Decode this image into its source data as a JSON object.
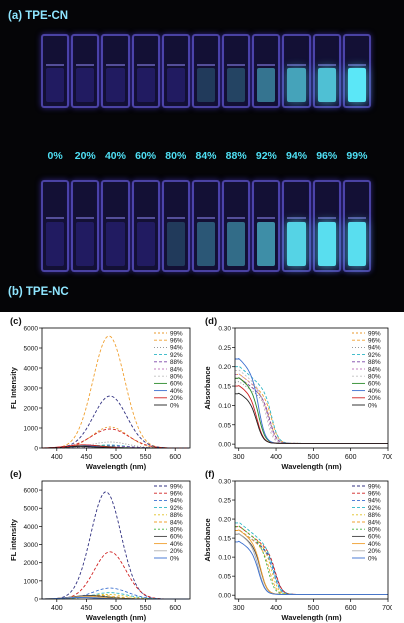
{
  "photos": {
    "label_top": "(a)  TPE-CN",
    "label_bottom": "(b)  TPE-NC",
    "percentages": [
      "0%",
      "20%",
      "40%",
      "60%",
      "80%",
      "84%",
      "88%",
      "92%",
      "94%",
      "96%",
      "99%"
    ],
    "top_emission": [
      0,
      0,
      0,
      0,
      0,
      0.05,
      0.1,
      0.35,
      0.6,
      0.75,
      0.95
    ],
    "bottom_emission": [
      0,
      0,
      0,
      0,
      0.05,
      0.2,
      0.3,
      0.5,
      0.85,
      0.9,
      0.9
    ],
    "colors": {
      "background": "#050507",
      "cuvette_glow": "#4a3bdc",
      "emission": "#5ff0ff",
      "label": "#4fe0f4"
    }
  },
  "chart_data": [
    {
      "panel": "(c)",
      "type": "line",
      "xlabel": "Wavelength (nm)",
      "ylabel": "FL Intensity",
      "xlim": [
        375,
        625
      ],
      "ylim": [
        0,
        6000
      ],
      "xticks": [
        400,
        450,
        500,
        550,
        600
      ],
      "yticks": [
        0,
        1000,
        2000,
        3000,
        4000,
        5000,
        6000
      ],
      "series": [
        {
          "name": "99%",
          "color": "#e89a2c",
          "dash": "2,2",
          "peak": 490,
          "width": 42,
          "amp": 1050
        },
        {
          "name": "96%",
          "color": "#f0a030",
          "dash": "3,2",
          "peak": 488,
          "width": 38,
          "amp": 5600
        },
        {
          "name": "94%",
          "color": "#8a8a8a",
          "dash": "1,2",
          "peak": 490,
          "width": 42,
          "amp": 300
        },
        {
          "name": "92%",
          "color": "#2bb5c5",
          "dash": "3,2",
          "peak": 488,
          "width": 40,
          "amp": 150
        },
        {
          "name": "88%",
          "color": "#7a44a8",
          "dash": "3,2",
          "peak": 490,
          "width": 45,
          "amp": 100
        },
        {
          "name": "84%",
          "color": "#c080c0",
          "dash": "2,2",
          "peak": 475,
          "width": 45,
          "amp": 80
        },
        {
          "name": "80%",
          "color": "#c0c0c0",
          "dash": "2,2",
          "peak": 470,
          "width": 45,
          "amp": 60
        },
        {
          "name": "60%",
          "color": "#2a8a2a",
          "dash": "",
          "peak": 455,
          "width": 40,
          "amp": 130
        },
        {
          "name": "40%",
          "color": "#3a6fd0",
          "dash": "",
          "peak": 450,
          "width": 40,
          "amp": 100
        },
        {
          "name": "20%",
          "color": "#d02020",
          "dash": "",
          "peak": 445,
          "width": 38,
          "amp": 160
        },
        {
          "name": "0%",
          "color": "#202020",
          "dash": "",
          "peak": 440,
          "width": 35,
          "amp": 80
        }
      ],
      "extra_series": [
        {
          "color": "#303080",
          "dash": "3,2",
          "peak": 490,
          "width": 40,
          "amp": 2600
        },
        {
          "color": "#d02020",
          "dash": "3,2",
          "peak": 490,
          "width": 45,
          "amp": 950
        }
      ]
    },
    {
      "panel": "(d)",
      "type": "line",
      "xlabel": "Wavelength (nm)",
      "ylabel": "Absorbance",
      "xlim": [
        290,
        700
      ],
      "ylim": [
        -0.01,
        0.3
      ],
      "xticks": [
        300,
        400,
        500,
        600,
        700
      ],
      "yticks": [
        0.0,
        0.05,
        0.1,
        0.15,
        0.2,
        0.25,
        0.3
      ],
      "series": [
        {
          "name": "99%",
          "color": "#e89a2c",
          "dash": "2,2",
          "a0": 0.17,
          "cut": 385
        },
        {
          "name": "96%",
          "color": "#f0a030",
          "dash": "3,2",
          "a0": 0.18,
          "cut": 390
        },
        {
          "name": "94%",
          "color": "#8a8a8a",
          "dash": "1,2",
          "a0": 0.16,
          "cut": 385
        },
        {
          "name": "92%",
          "color": "#2bb5c5",
          "dash": "3,2",
          "a0": 0.2,
          "cut": 390
        },
        {
          "name": "88%",
          "color": "#7a44a8",
          "dash": "3,2",
          "a0": 0.17,
          "cut": 385
        },
        {
          "name": "84%",
          "color": "#c080c0",
          "dash": "2,2",
          "a0": 0.18,
          "cut": 380
        },
        {
          "name": "80%",
          "color": "#c0c0c0",
          "dash": "2,2",
          "a0": 0.19,
          "cut": 375
        },
        {
          "name": "60%",
          "color": "#2a8a2a",
          "dash": "",
          "a0": 0.17,
          "cut": 355
        },
        {
          "name": "40%",
          "color": "#3a6fd0",
          "dash": "",
          "a0": 0.22,
          "cut": 355
        },
        {
          "name": "20%",
          "color": "#d02020",
          "dash": "",
          "a0": 0.15,
          "cut": 350
        },
        {
          "name": "0%",
          "color": "#202020",
          "dash": "",
          "a0": 0.13,
          "cut": 350
        }
      ]
    },
    {
      "panel": "(e)",
      "type": "line",
      "xlabel": "Wavelength (nm)",
      "ylabel": "FL intensity",
      "xlim": [
        375,
        625
      ],
      "ylim": [
        0,
        6500
      ],
      "xticks": [
        400,
        450,
        500,
        550,
        600
      ],
      "yticks": [
        0,
        1000,
        2000,
        3000,
        4000,
        5000,
        6000
      ],
      "series": [
        {
          "name": "99%",
          "color": "#303080",
          "dash": "3,2",
          "peak": 483,
          "width": 36,
          "amp": 5900
        },
        {
          "name": "96%",
          "color": "#d02020",
          "dash": "3,2",
          "peak": 490,
          "width": 38,
          "amp": 2600
        },
        {
          "name": "94%",
          "color": "#3a6fd0",
          "dash": "3,2",
          "peak": 490,
          "width": 42,
          "amp": 600
        },
        {
          "name": "92%",
          "color": "#2bb5c5",
          "dash": "3,2",
          "peak": 490,
          "width": 42,
          "amp": 350
        },
        {
          "name": "88%",
          "color": "#e0c020",
          "dash": "2,2",
          "peak": 485,
          "width": 45,
          "amp": 250
        },
        {
          "name": "84%",
          "color": "#f0a030",
          "dash": "3,2",
          "peak": 470,
          "width": 45,
          "amp": 200
        },
        {
          "name": "80%",
          "color": "#40b040",
          "dash": "2,2",
          "peak": 460,
          "width": 42,
          "amp": 180
        },
        {
          "name": "60%",
          "color": "#404040",
          "dash": "",
          "peak": 455,
          "width": 42,
          "amp": 190
        },
        {
          "name": "40%",
          "color": "#f0a030",
          "dash": "",
          "peak": 450,
          "width": 42,
          "amp": 140
        },
        {
          "name": "20%",
          "color": "#b0b0b0",
          "dash": "",
          "peak": 445,
          "width": 40,
          "amp": 110
        },
        {
          "name": "0%",
          "color": "#3a6fd0",
          "dash": "",
          "peak": 440,
          "width": 38,
          "amp": 80
        }
      ]
    },
    {
      "panel": "(f)",
      "type": "line",
      "xlabel": "Wavelength (nm)",
      "ylabel": "Absorbance",
      "xlim": [
        290,
        700
      ],
      "ylim": [
        -0.01,
        0.3
      ],
      "xticks": [
        300,
        400,
        500,
        600,
        700
      ],
      "yticks": [
        0.0,
        0.05,
        0.1,
        0.15,
        0.2,
        0.25,
        0.3
      ],
      "series": [
        {
          "name": "99%",
          "color": "#303080",
          "dash": "3,2",
          "a0": 0.17,
          "cut": 400
        },
        {
          "name": "96%",
          "color": "#d02020",
          "dash": "3,2",
          "a0": 0.18,
          "cut": 400
        },
        {
          "name": "94%",
          "color": "#3a6fd0",
          "dash": "3,2",
          "a0": 0.17,
          "cut": 395
        },
        {
          "name": "92%",
          "color": "#2bb5c5",
          "dash": "3,2",
          "a0": 0.19,
          "cut": 395
        },
        {
          "name": "88%",
          "color": "#e0c020",
          "dash": "2,2",
          "a0": 0.18,
          "cut": 390
        },
        {
          "name": "84%",
          "color": "#f0a030",
          "dash": "3,2",
          "a0": 0.17,
          "cut": 385
        },
        {
          "name": "80%",
          "color": "#40b040",
          "dash": "2,2",
          "a0": 0.18,
          "cut": 380
        },
        {
          "name": "60%",
          "color": "#404040",
          "dash": "",
          "a0": 0.16,
          "cut": 360
        },
        {
          "name": "40%",
          "color": "#f0a030",
          "dash": "",
          "a0": 0.17,
          "cut": 360
        },
        {
          "name": "20%",
          "color": "#b0b0b0",
          "dash": "",
          "a0": 0.16,
          "cut": 355
        },
        {
          "name": "0%",
          "color": "#3a6fd0",
          "dash": "",
          "a0": 0.14,
          "cut": 355
        }
      ]
    }
  ]
}
